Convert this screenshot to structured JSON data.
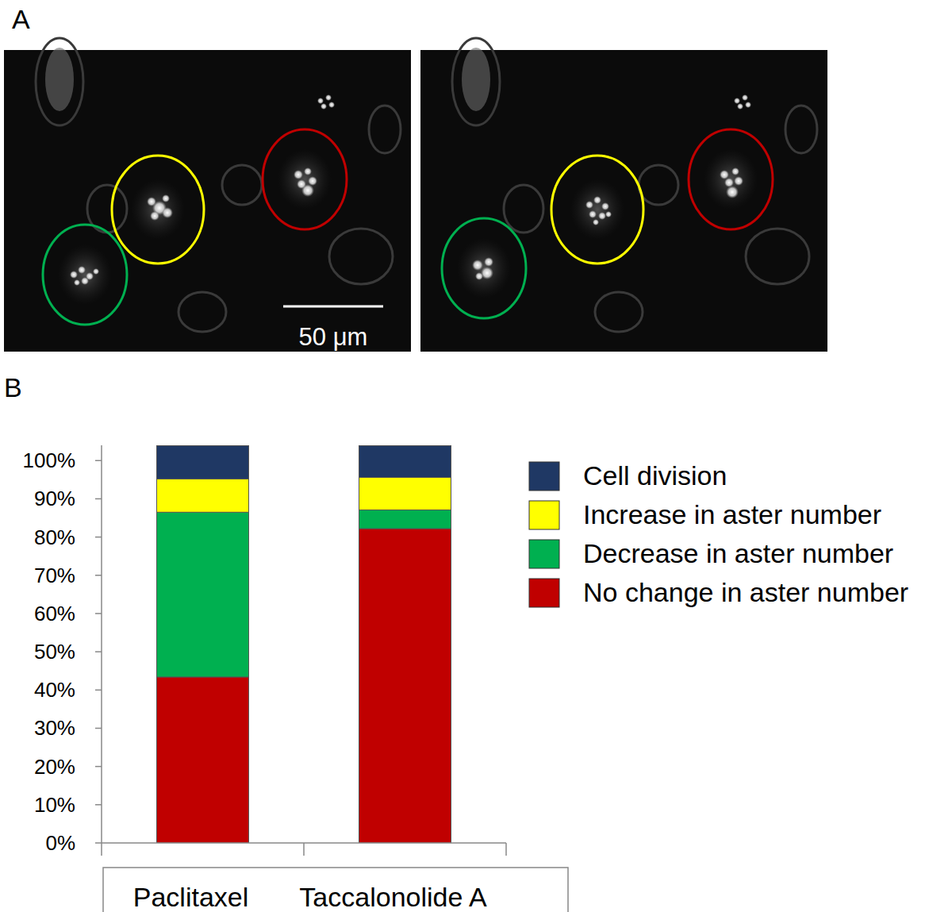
{
  "panel_labels": [
    "A",
    "B"
  ],
  "scale_bar": "50 μm",
  "chart_data": {
    "type": "bar",
    "stacked": true,
    "legend": "right",
    "grid": false,
    "categories": [
      "Paclitaxel",
      "Taccalonolide A"
    ],
    "ylim": [
      0,
      104
    ],
    "yticks": [
      {
        "value": 0,
        "label": "0%"
      },
      {
        "value": 10,
        "label": "10%"
      },
      {
        "value": 20,
        "label": "20%"
      },
      {
        "value": 30,
        "label": "30%"
      },
      {
        "value": 40,
        "label": "40%"
      },
      {
        "value": 50,
        "label": "50%"
      },
      {
        "value": 60,
        "label": "60%"
      },
      {
        "value": 70,
        "label": "70%"
      },
      {
        "value": 80,
        "label": "80%"
      },
      {
        "value": 90,
        "label": "90%"
      },
      {
        "value": 100,
        "label": "100%"
      }
    ],
    "series": [
      {
        "name": "No change in aster number",
        "color": "#c00000",
        "values": [
          43.4,
          82.2
        ]
      },
      {
        "name": "Decrease in aster number",
        "color": "#00b050",
        "values": [
          43.1,
          4.9
        ]
      },
      {
        "name": "Increase in aster number",
        "color": "#ffff00",
        "values": [
          8.7,
          8.5
        ]
      },
      {
        "name": "Cell division",
        "color": "#1f3864",
        "values": [
          8.7,
          8.3
        ]
      }
    ]
  }
}
